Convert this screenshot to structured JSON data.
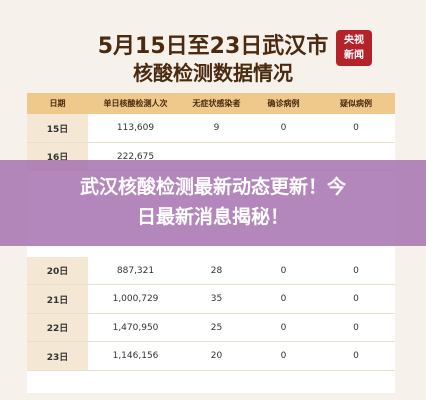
{
  "header": {
    "title_line1": "5月15日至23日武汉市",
    "title_line2": "核酸检测数据情况",
    "logo_top": "央视",
    "logo_bottom": "新闻"
  },
  "table": {
    "columns": [
      "日期",
      "单日核酸检测人次",
      "无症状感染者",
      "确诊病例",
      "疑似病例"
    ],
    "rows_top": [
      [
        "15日",
        "113,609",
        "9",
        "0",
        "0"
      ],
      [
        "16日",
        "222,675"
      ]
    ],
    "rows_bottom": [
      [
        "20日",
        "887,321",
        "28",
        "0",
        "0"
      ],
      [
        "21日",
        "1,000,729",
        "35",
        "0",
        "0"
      ],
      [
        "22日",
        "1,470,950",
        "25",
        "0",
        "0"
      ],
      [
        "23日",
        "1,146,156",
        "20",
        "0",
        "0"
      ]
    ]
  },
  "banner": {
    "line1": "武汉核酸检测最新动态更新！今",
    "line2": "日最新消息揭秘！"
  }
}
